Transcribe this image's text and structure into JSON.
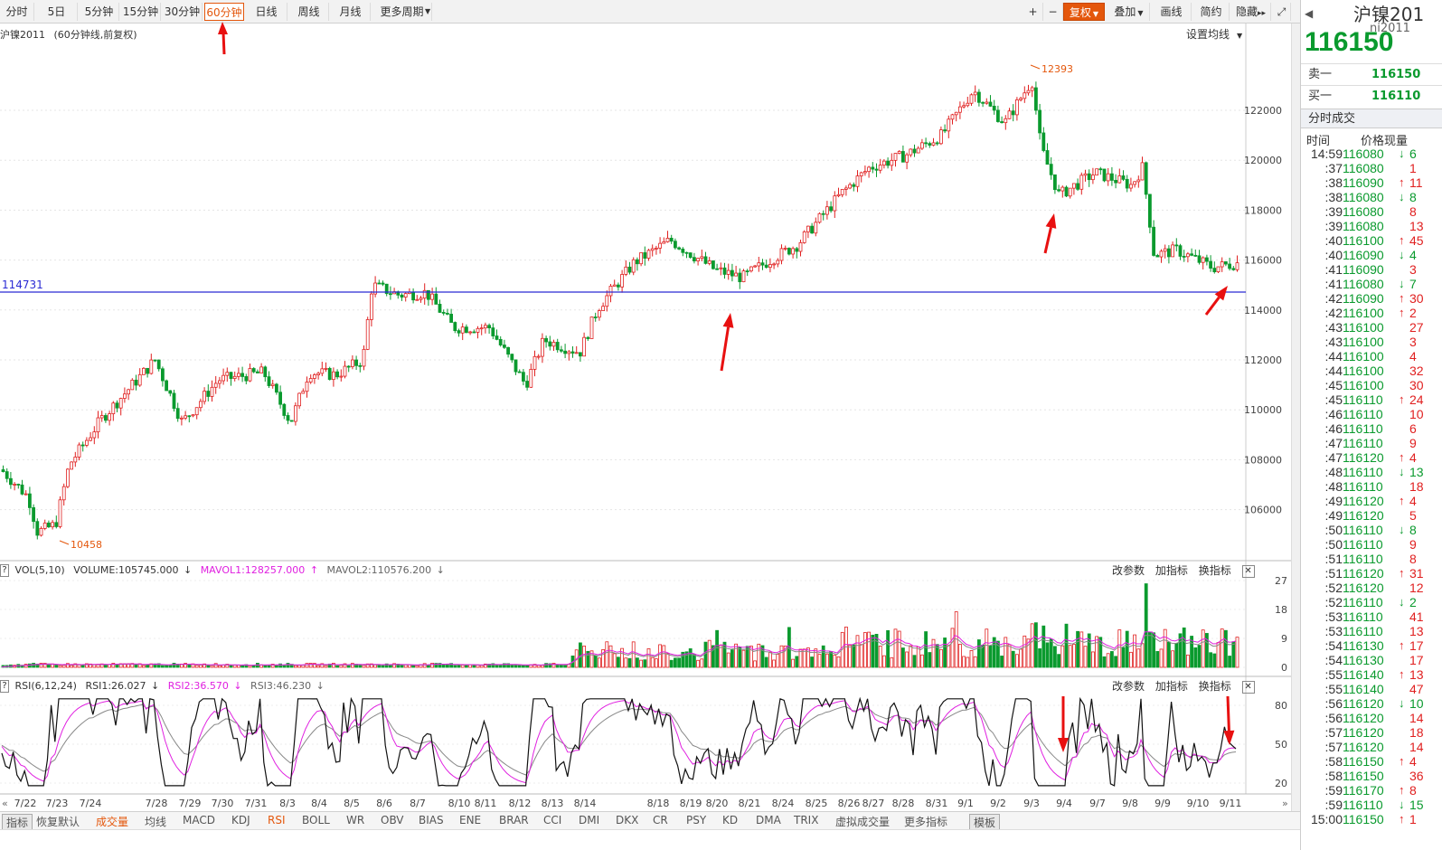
{
  "toolbar": {
    "periods": [
      "分时",
      "5日",
      "5分钟",
      "15分钟",
      "30分钟",
      "60分钟",
      "日线",
      "周线",
      "月线",
      "更多周期"
    ],
    "active_period": "60分钟",
    "right_tools": [
      "复权",
      "叠加",
      "画线",
      "简约",
      "隐藏"
    ]
  },
  "chart": {
    "name": "沪镍2011",
    "subtitle": "(60分钟线,前复权)",
    "set_ma": "设置均线",
    "hline_label": "114731",
    "high_label": "12393",
    "low_label": "10458",
    "y_ticks": [
      "122000",
      "120000",
      "118000",
      "116000",
      "114000",
      "112000",
      "110000",
      "108000",
      "106000"
    ]
  },
  "vol_panel": {
    "label": "VOL(5,10)",
    "volume": "VOLUME:105745.000",
    "mavol1": "MAVOL1:128257.000",
    "mavol2": "MAVOL2:110576.200",
    "y_ticks": [
      "27",
      "18",
      "9",
      "0"
    ],
    "actions": [
      "改参数",
      "加指标",
      "换指标"
    ]
  },
  "rsi_panel": {
    "label": "RSI(6,12,24)",
    "rsi1": "RSI1:26.027",
    "rsi2": "RSI2:36.570",
    "rsi3": "RSI3:46.230",
    "y_ticks": [
      "80",
      "50",
      "20"
    ],
    "actions": [
      "改参数",
      "加指标",
      "换指标"
    ]
  },
  "x_dates": [
    "7/22",
    "7/23",
    "7/24",
    "7/28",
    "7/29",
    "7/30",
    "7/31",
    "8/3",
    "8/4",
    "8/5",
    "8/6",
    "8/7",
    "8/10",
    "8/11",
    "8/12",
    "8/13",
    "8/14",
    "8/18",
    "8/19",
    "8/20",
    "8/21",
    "8/24",
    "8/25",
    "8/26",
    "8/27",
    "8/28",
    "8/31",
    "9/1",
    "9/2",
    "9/3",
    "9/4",
    "9/7",
    "9/8",
    "9/9",
    "9/10",
    "9/11"
  ],
  "indicators": [
    "指标",
    "恢复默认",
    "成交量",
    "均线",
    "MACD",
    "KDJ",
    "RSI",
    "BOLL",
    "WR",
    "OBV",
    "BIAS",
    "ENE",
    "BRAR",
    "CCI",
    "DMI",
    "DKX",
    "CR",
    "PSY",
    "KD",
    "DMA",
    "TRIX",
    "虚拟成交量",
    "更多指标",
    "模板"
  ],
  "quote": {
    "title": "沪镍201",
    "code": "ni2011",
    "last": "116150",
    "ask_label": "卖一",
    "ask": "116150",
    "bid_label": "买一",
    "bid": "116110",
    "section": "分时成交",
    "col_time": "时间",
    "col_price": "价格现量",
    "ticks": [
      {
        "t": "14:59",
        "p": "116080",
        "d": "dn",
        "q": "6"
      },
      {
        "t": ":37",
        "p": "116080",
        "d": "",
        "q": "1"
      },
      {
        "t": ":38",
        "p": "116090",
        "d": "up",
        "q": "11"
      },
      {
        "t": ":38",
        "p": "116080",
        "d": "dn",
        "q": "8"
      },
      {
        "t": ":39",
        "p": "116080",
        "d": "",
        "q": "8"
      },
      {
        "t": ":39",
        "p": "116080",
        "d": "",
        "q": "13"
      },
      {
        "t": ":40",
        "p": "116100",
        "d": "up",
        "q": "45"
      },
      {
        "t": ":40",
        "p": "116090",
        "d": "dn",
        "q": "4"
      },
      {
        "t": ":41",
        "p": "116090",
        "d": "",
        "q": "3"
      },
      {
        "t": ":41",
        "p": "116080",
        "d": "dn",
        "q": "7"
      },
      {
        "t": ":42",
        "p": "116090",
        "d": "up",
        "q": "30"
      },
      {
        "t": ":42",
        "p": "116100",
        "d": "up",
        "q": "2"
      },
      {
        "t": ":43",
        "p": "116100",
        "d": "",
        "q": "27"
      },
      {
        "t": ":43",
        "p": "116100",
        "d": "",
        "q": "3"
      },
      {
        "t": ":44",
        "p": "116100",
        "d": "",
        "q": "4"
      },
      {
        "t": ":44",
        "p": "116100",
        "d": "",
        "q": "32"
      },
      {
        "t": ":45",
        "p": "116100",
        "d": "",
        "q": "30"
      },
      {
        "t": ":45",
        "p": "116110",
        "d": "up",
        "q": "24"
      },
      {
        "t": ":46",
        "p": "116110",
        "d": "",
        "q": "10"
      },
      {
        "t": ":46",
        "p": "116110",
        "d": "",
        "q": "6"
      },
      {
        "t": ":47",
        "p": "116110",
        "d": "",
        "q": "9"
      },
      {
        "t": ":47",
        "p": "116120",
        "d": "up",
        "q": "4"
      },
      {
        "t": ":48",
        "p": "116110",
        "d": "dn",
        "q": "13"
      },
      {
        "t": ":48",
        "p": "116110",
        "d": "",
        "q": "18"
      },
      {
        "t": ":49",
        "p": "116120",
        "d": "up",
        "q": "4"
      },
      {
        "t": ":49",
        "p": "116120",
        "d": "",
        "q": "5"
      },
      {
        "t": ":50",
        "p": "116110",
        "d": "dn",
        "q": "8"
      },
      {
        "t": ":50",
        "p": "116110",
        "d": "",
        "q": "9"
      },
      {
        "t": ":51",
        "p": "116110",
        "d": "",
        "q": "8"
      },
      {
        "t": ":51",
        "p": "116120",
        "d": "up",
        "q": "31"
      },
      {
        "t": ":52",
        "p": "116120",
        "d": "",
        "q": "12"
      },
      {
        "t": ":52",
        "p": "116110",
        "d": "dn",
        "q": "2"
      },
      {
        "t": ":53",
        "p": "116110",
        "d": "",
        "q": "41"
      },
      {
        "t": ":53",
        "p": "116110",
        "d": "",
        "q": "13"
      },
      {
        "t": ":54",
        "p": "116130",
        "d": "up",
        "q": "17"
      },
      {
        "t": ":54",
        "p": "116130",
        "d": "",
        "q": "17"
      },
      {
        "t": ":55",
        "p": "116140",
        "d": "up",
        "q": "13"
      },
      {
        "t": ":55",
        "p": "116140",
        "d": "",
        "q": "47"
      },
      {
        "t": ":56",
        "p": "116120",
        "d": "dn",
        "q": "10"
      },
      {
        "t": ":56",
        "p": "116120",
        "d": "",
        "q": "14"
      },
      {
        "t": ":57",
        "p": "116120",
        "d": "",
        "q": "18"
      },
      {
        "t": ":57",
        "p": "116120",
        "d": "",
        "q": "14"
      },
      {
        "t": ":58",
        "p": "116150",
        "d": "up",
        "q": "4"
      },
      {
        "t": ":58",
        "p": "116150",
        "d": "",
        "q": "36"
      },
      {
        "t": ":59",
        "p": "116170",
        "d": "up",
        "q": "8"
      },
      {
        "t": ":59",
        "p": "116110",
        "d": "dn",
        "q": "15"
      },
      {
        "t": "15:00",
        "p": "116150",
        "d": "up",
        "q": "1"
      }
    ]
  },
  "colors": {
    "up": "#e02020",
    "down": "#0a9a2e",
    "accent": "#e4570c",
    "hline": "#2b2bd4"
  }
}
